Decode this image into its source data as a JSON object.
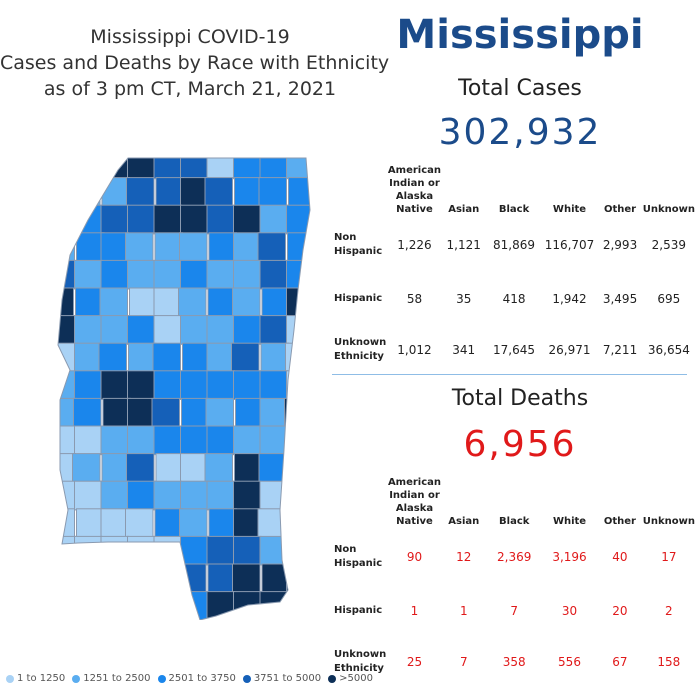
{
  "title": {
    "line1": "Mississippi COVID-19",
    "line2": "Cases and Deaths by Race with Ethnicity",
    "line3": "as of 3 pm CT, March 21, 2021"
  },
  "state_name": "Mississippi",
  "cases": {
    "label": "Total Cases",
    "total": "302,932",
    "columns": [
      "American Indian or Alaska Native",
      "Asian",
      "Black",
      "White",
      "Other",
      "Unknown"
    ],
    "rows": [
      {
        "label": "Non Hispanic",
        "values": [
          "1,226",
          "1,121",
          "81,869",
          "116,707",
          "2,993",
          "2,539"
        ]
      },
      {
        "label": "Hispanic",
        "values": [
          "58",
          "35",
          "418",
          "1,942",
          "3,495",
          "695"
        ]
      },
      {
        "label": "Unknown Ethnicity",
        "values": [
          "1,012",
          "341",
          "17,645",
          "26,971",
          "7,211",
          "36,654"
        ]
      }
    ]
  },
  "deaths": {
    "label": "Total Deaths",
    "total": "6,956",
    "columns": [
      "American Indian or Alaska Native",
      "Asian",
      "Black",
      "White",
      "Other",
      "Unknown"
    ],
    "rows": [
      {
        "label": "Non Hispanic",
        "values": [
          "90",
          "12",
          "2,369",
          "3,196",
          "40",
          "17"
        ]
      },
      {
        "label": "Hispanic",
        "values": [
          "1",
          "1",
          "7",
          "30",
          "20",
          "2"
        ]
      },
      {
        "label": "Unknown Ethnicity",
        "values": [
          "25",
          "7",
          "358",
          "556",
          "67",
          "158"
        ]
      }
    ]
  },
  "legend": [
    {
      "label": "1 to 1250",
      "color": "#a9d2f5"
    },
    {
      "label": "1251 to 2500",
      "color": "#5aadf0"
    },
    {
      "label": "2501 to 3750",
      "color": "#1a86ec"
    },
    {
      "label": "3751 to 5000",
      "color": "#1560b8"
    },
    {
      "label": ">5000",
      "color": "#0d2f57"
    }
  ],
  "colors": {
    "state_name": "#1b4b8a",
    "cases_total": "#1b4b8a",
    "deaths_total": "#e0191a",
    "divider": "#8fbde6",
    "county_border": "#8a9ab0"
  }
}
